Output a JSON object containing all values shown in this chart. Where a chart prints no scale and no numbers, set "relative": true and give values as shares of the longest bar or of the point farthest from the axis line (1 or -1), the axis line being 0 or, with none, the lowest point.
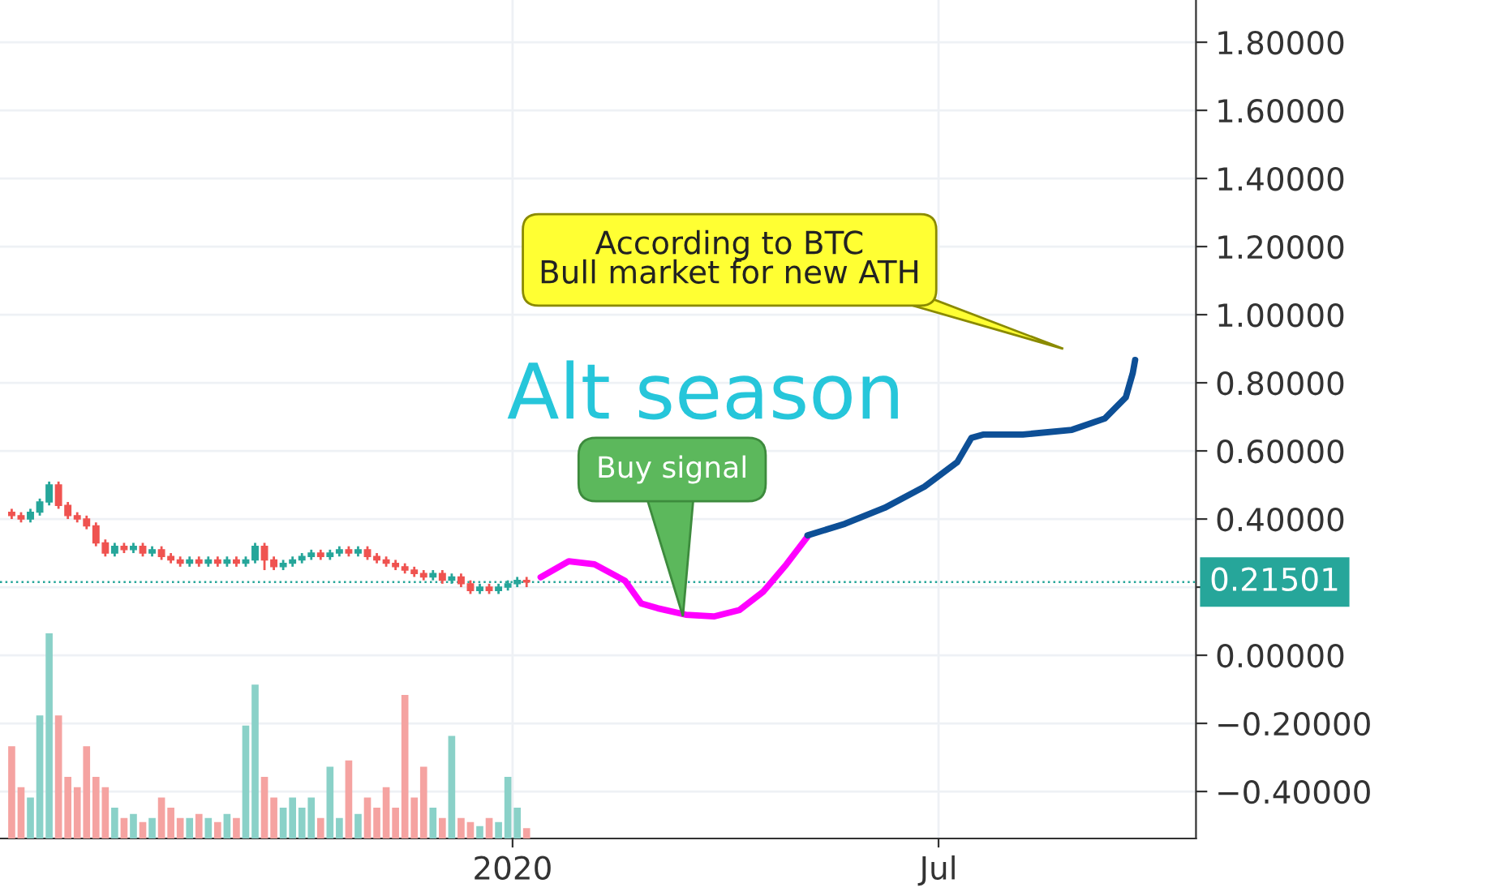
{
  "chart_data": [
    {
      "type": "candlestick",
      "x": [
        "2019-06-01",
        "2019-06-05",
        "2019-06-09",
        "2019-06-13",
        "2019-06-17",
        "2019-06-21",
        "2019-06-25",
        "2019-06-29",
        "2019-07-03",
        "2019-07-07",
        "2019-07-11",
        "2019-07-15",
        "2019-07-19",
        "2019-07-23",
        "2019-07-27",
        "2019-07-31",
        "2019-08-04",
        "2019-08-08",
        "2019-08-12",
        "2019-08-16",
        "2019-08-20",
        "2019-08-24",
        "2019-08-28",
        "2019-09-01",
        "2019-09-05",
        "2019-09-09",
        "2019-09-13",
        "2019-09-17",
        "2019-09-21",
        "2019-09-25",
        "2019-09-29",
        "2019-10-03",
        "2019-10-07",
        "2019-10-11",
        "2019-10-15",
        "2019-10-19",
        "2019-10-23",
        "2019-10-27",
        "2019-10-31",
        "2019-11-04",
        "2019-11-08",
        "2019-11-12",
        "2019-11-16",
        "2019-11-20",
        "2019-11-24",
        "2019-11-28",
        "2019-12-02",
        "2019-12-06",
        "2019-12-10",
        "2019-12-14",
        "2019-12-18",
        "2019-12-22",
        "2019-12-26",
        "2019-12-30",
        "2020-01-03",
        "2020-01-07"
      ],
      "ohlc": [
        [
          0.42,
          0.43,
          0.4,
          0.41
        ],
        [
          0.41,
          0.42,
          0.39,
          0.4
        ],
        [
          0.4,
          0.43,
          0.39,
          0.42
        ],
        [
          0.42,
          0.46,
          0.41,
          0.45
        ],
        [
          0.45,
          0.51,
          0.44,
          0.5
        ],
        [
          0.5,
          0.51,
          0.43,
          0.44
        ],
        [
          0.44,
          0.45,
          0.4,
          0.41
        ],
        [
          0.41,
          0.42,
          0.39,
          0.4
        ],
        [
          0.4,
          0.41,
          0.37,
          0.38
        ],
        [
          0.38,
          0.39,
          0.32,
          0.33
        ],
        [
          0.33,
          0.34,
          0.29,
          0.3
        ],
        [
          0.3,
          0.33,
          0.29,
          0.32
        ],
        [
          0.32,
          0.33,
          0.3,
          0.31
        ],
        [
          0.31,
          0.33,
          0.3,
          0.32
        ],
        [
          0.32,
          0.33,
          0.29,
          0.3
        ],
        [
          0.3,
          0.32,
          0.29,
          0.31
        ],
        [
          0.31,
          0.32,
          0.28,
          0.29
        ],
        [
          0.29,
          0.3,
          0.27,
          0.28
        ],
        [
          0.28,
          0.29,
          0.26,
          0.27
        ],
        [
          0.27,
          0.29,
          0.26,
          0.28
        ],
        [
          0.28,
          0.29,
          0.26,
          0.27
        ],
        [
          0.27,
          0.29,
          0.26,
          0.28
        ],
        [
          0.28,
          0.29,
          0.26,
          0.27
        ],
        [
          0.27,
          0.29,
          0.26,
          0.28
        ],
        [
          0.28,
          0.29,
          0.26,
          0.27
        ],
        [
          0.27,
          0.29,
          0.26,
          0.28
        ],
        [
          0.28,
          0.33,
          0.27,
          0.32
        ],
        [
          0.32,
          0.33,
          0.25,
          0.28
        ],
        [
          0.28,
          0.29,
          0.25,
          0.26
        ],
        [
          0.26,
          0.28,
          0.25,
          0.27
        ],
        [
          0.27,
          0.29,
          0.26,
          0.28
        ],
        [
          0.28,
          0.3,
          0.27,
          0.29
        ],
        [
          0.29,
          0.31,
          0.28,
          0.3
        ],
        [
          0.3,
          0.31,
          0.28,
          0.29
        ],
        [
          0.29,
          0.31,
          0.28,
          0.3
        ],
        [
          0.3,
          0.32,
          0.29,
          0.31
        ],
        [
          0.31,
          0.32,
          0.29,
          0.3
        ],
        [
          0.3,
          0.32,
          0.29,
          0.31
        ],
        [
          0.31,
          0.32,
          0.28,
          0.29
        ],
        [
          0.29,
          0.3,
          0.27,
          0.28
        ],
        [
          0.28,
          0.29,
          0.26,
          0.27
        ],
        [
          0.27,
          0.28,
          0.25,
          0.26
        ],
        [
          0.26,
          0.27,
          0.24,
          0.25
        ],
        [
          0.25,
          0.26,
          0.23,
          0.24
        ],
        [
          0.24,
          0.25,
          0.22,
          0.23
        ],
        [
          0.23,
          0.25,
          0.22,
          0.24
        ],
        [
          0.24,
          0.25,
          0.21,
          0.22
        ],
        [
          0.22,
          0.24,
          0.21,
          0.23
        ],
        [
          0.23,
          0.24,
          0.2,
          0.21
        ],
        [
          0.21,
          0.22,
          0.18,
          0.19
        ],
        [
          0.19,
          0.21,
          0.18,
          0.2
        ],
        [
          0.2,
          0.21,
          0.18,
          0.19
        ],
        [
          0.19,
          0.21,
          0.18,
          0.2
        ],
        [
          0.2,
          0.22,
          0.19,
          0.21
        ],
        [
          0.21,
          0.23,
          0.2,
          0.22
        ],
        [
          0.22,
          0.23,
          0.2,
          0.215
        ]
      ],
      "colors": [
        "#ef5350",
        "#ef5350",
        "#26a69a",
        "#26a69a",
        "#26a69a",
        "#ef5350",
        "#ef5350",
        "#ef5350",
        "#ef5350",
        "#ef5350",
        "#ef5350",
        "#26a69a",
        "#ef5350",
        "#26a69a",
        "#ef5350",
        "#26a69a",
        "#ef5350",
        "#ef5350",
        "#ef5350",
        "#26a69a",
        "#ef5350",
        "#26a69a",
        "#ef5350",
        "#26a69a",
        "#ef5350",
        "#26a69a",
        "#26a69a",
        "#ef5350",
        "#ef5350",
        "#26a69a",
        "#26a69a",
        "#26a69a",
        "#26a69a",
        "#ef5350",
        "#26a69a",
        "#26a69a",
        "#ef5350",
        "#26a69a",
        "#ef5350",
        "#ef5350",
        "#ef5350",
        "#ef5350",
        "#ef5350",
        "#ef5350",
        "#ef5350",
        "#26a69a",
        "#ef5350",
        "#26a69a",
        "#ef5350",
        "#ef5350",
        "#26a69a",
        "#ef5350",
        "#26a69a",
        "#26a69a",
        "#26a69a",
        "#ef5350"
      ],
      "series": [
        {
          "type": "line",
          "color": "#ff00ff",
          "x": [
            "2020-01-13",
            "2020-01-25",
            "2020-02-05",
            "2020-02-18",
            "2020-02-25",
            "2020-03-03",
            "2020-03-15",
            "2020-03-27",
            "2020-04-07",
            "2020-04-17",
            "2020-04-27",
            "2020-05-06"
          ],
          "values": [
            0.229,
            0.276,
            0.267,
            0.219,
            0.152,
            0.138,
            0.119,
            0.114,
            0.133,
            0.186,
            0.267,
            0.348
          ]
        },
        {
          "type": "line",
          "color": "#0d4f96",
          "x": [
            "2020-05-06",
            "2020-05-22",
            "2020-06-08",
            "2020-06-25",
            "2020-07-09",
            "2020-07-15",
            "2020-07-20",
            "2020-08-06",
            "2020-08-27",
            "2020-09-10",
            "2020-09-19",
            "2020-09-22",
            "2020-09-23"
          ],
          "values": [
            0.352,
            0.386,
            0.433,
            0.495,
            0.567,
            0.638,
            0.648,
            0.648,
            0.662,
            0.695,
            0.757,
            0.829,
            0.867
          ]
        }
      ],
      "xlim": [
        "2019-05-27",
        "2020-10-19"
      ],
      "xticks": [
        {
          "value": "2020-01-01",
          "label": "2020"
        },
        {
          "value": "2020-07-01",
          "label": "Jul"
        }
      ],
      "ylim": [
        -0.538,
        1.924
      ],
      "yticks": [
        {
          "value": 1.8,
          "label": "1.80000"
        },
        {
          "value": 1.6,
          "label": "1.60000"
        },
        {
          "value": 1.4,
          "label": "1.40000"
        },
        {
          "value": 1.2,
          "label": "1.20000"
        },
        {
          "value": 1.0,
          "label": "1.00000"
        },
        {
          "value": 0.8,
          "label": "0.80000"
        },
        {
          "value": 0.6,
          "label": "0.60000"
        },
        {
          "value": 0.4,
          "label": "0.40000"
        },
        {
          "value": 0.2,
          "label": null
        },
        {
          "value": 0.0,
          "label": "0.00000"
        },
        {
          "value": -0.2,
          "label": "−0.20000"
        },
        {
          "value": -0.4,
          "label": "−0.40000"
        }
      ],
      "ref_lines": [
        {
          "axis": "y",
          "value": 0.21501,
          "label": "0.21501",
          "color": "#26a69a",
          "line_style": "dotted"
        }
      ],
      "annotations": [
        "Alt season",
        "Buy signal",
        "According to BTC\nBull market for new ATH"
      ],
      "grid": true
    },
    {
      "type": "bar",
      "relative": true,
      "categories": [
        null,
        null,
        null,
        null,
        null,
        null,
        null,
        null,
        null,
        null,
        null,
        null,
        null,
        null,
        null,
        null,
        null,
        null,
        null,
        null,
        null,
        null,
        null,
        null,
        null,
        null,
        null,
        null,
        null,
        null,
        null,
        null,
        null,
        null,
        null,
        null,
        null,
        null,
        null,
        null,
        null,
        null,
        null,
        null,
        null,
        null,
        null,
        null,
        null,
        null,
        null,
        null,
        null,
        null,
        null,
        null
      ],
      "values": [
        0.45,
        0.25,
        0.2,
        0.6,
        1.0,
        0.6,
        0.3,
        0.25,
        0.45,
        0.3,
        0.25,
        0.15,
        0.1,
        0.12,
        0.08,
        0.1,
        0.2,
        0.15,
        0.1,
        0.1,
        0.12,
        0.1,
        0.08,
        0.12,
        0.1,
        0.55,
        0.75,
        0.3,
        0.2,
        0.15,
        0.2,
        0.15,
        0.2,
        0.1,
        0.35,
        0.1,
        0.38,
        0.12,
        0.2,
        0.15,
        0.25,
        0.15,
        0.7,
        0.2,
        0.35,
        0.15,
        0.1,
        0.5,
        0.1,
        0.08,
        0.06,
        0.1,
        0.08,
        0.3,
        0.15,
        0.05
      ],
      "colors": [
        "#f5a3a1",
        "#f5a3a1",
        "#8ad1c8",
        "#8ad1c8",
        "#8ad1c8",
        "#f5a3a1",
        "#f5a3a1",
        "#f5a3a1",
        "#f5a3a1",
        "#f5a3a1",
        "#f5a3a1",
        "#8ad1c8",
        "#f5a3a1",
        "#8ad1c8",
        "#f5a3a1",
        "#8ad1c8",
        "#f5a3a1",
        "#f5a3a1",
        "#f5a3a1",
        "#8ad1c8",
        "#f5a3a1",
        "#8ad1c8",
        "#f5a3a1",
        "#8ad1c8",
        "#f5a3a1",
        "#8ad1c8",
        "#8ad1c8",
        "#f5a3a1",
        "#f5a3a1",
        "#8ad1c8",
        "#8ad1c8",
        "#8ad1c8",
        "#8ad1c8",
        "#f5a3a1",
        "#8ad1c8",
        "#8ad1c8",
        "#f5a3a1",
        "#8ad1c8",
        "#f5a3a1",
        "#f5a3a1",
        "#f5a3a1",
        "#f5a3a1",
        "#f5a3a1",
        "#f5a3a1",
        "#f5a3a1",
        "#8ad1c8",
        "#f5a3a1",
        "#8ad1c8",
        "#f5a3a1",
        "#f5a3a1",
        "#8ad1c8",
        "#f5a3a1",
        "#8ad1c8",
        "#8ad1c8",
        "#8ad1c8",
        "#f5a3a1"
      ]
    }
  ]
}
